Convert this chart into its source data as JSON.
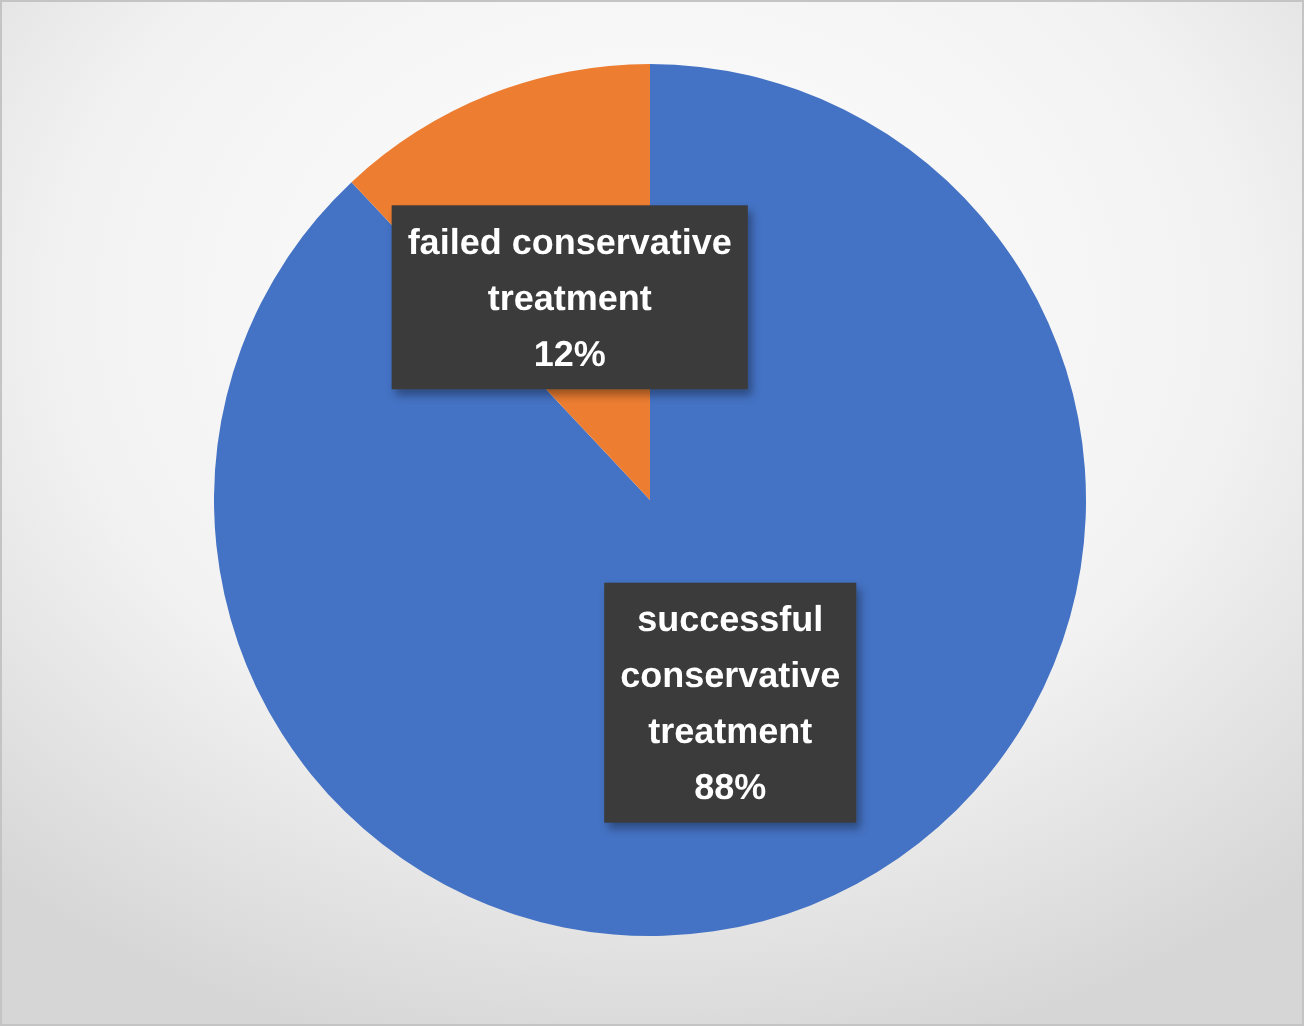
{
  "chart_data": {
    "type": "pie",
    "categories": [
      "successful conservative treatment",
      "failed conservative treatment"
    ],
    "values": [
      88,
      12
    ],
    "colors": [
      "#4472c4",
      "#ed7d31"
    ],
    "value_labels": [
      "88%",
      "12%"
    ]
  }
}
